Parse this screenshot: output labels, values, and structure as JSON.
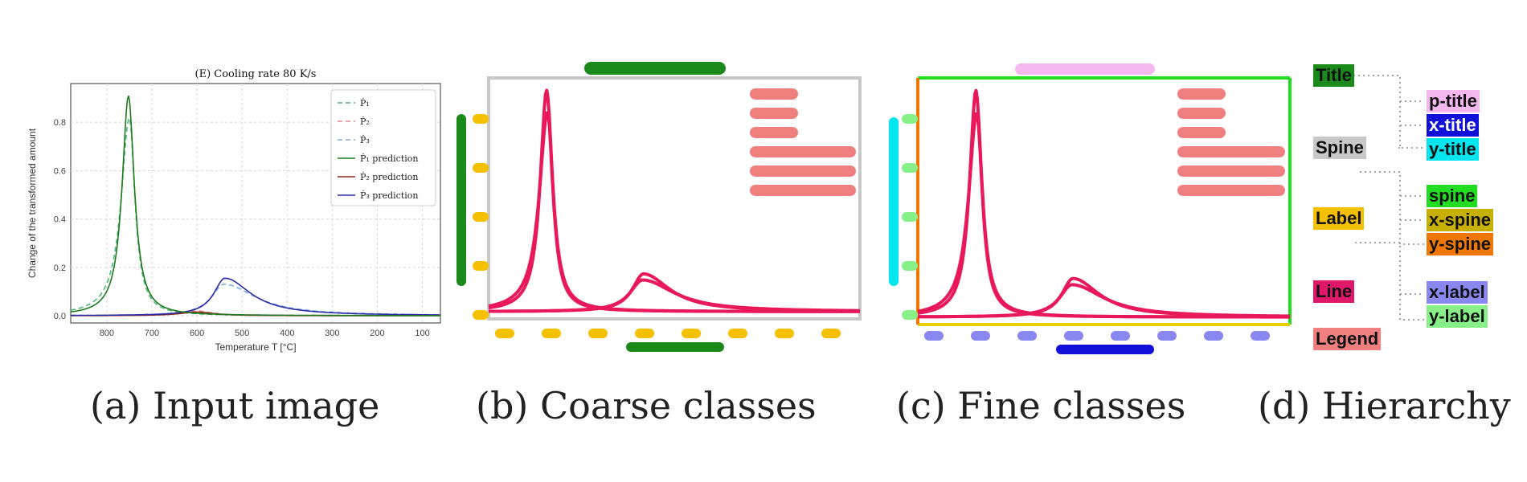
{
  "captions": {
    "a": "(a) Input image",
    "b": "(b) Coarse classes",
    "c": "(c) Fine classes",
    "d": "(d) Hierarchy"
  },
  "input_chart": {
    "title_prefix": "(E)",
    "title_text": "Cooling rate 80",
    "title_unit": "K/s",
    "xlabel": "Temperature T [°C]",
    "ylabel": "Change of the transformed amount",
    "x_ticks": [
      "800",
      "700",
      "600",
      "500",
      "400",
      "300",
      "200",
      "100"
    ],
    "y_ticks": [
      "0.0",
      "0.2",
      "0.4",
      "0.6",
      "0.8"
    ],
    "legend": [
      "Ṗ₁",
      "Ṗ₂",
      "Ṗ₃",
      "Ṗ₁ prediction",
      "Ṗ₂ prediction",
      "Ṗ₃ prediction"
    ],
    "colors": {
      "p1_dash": "#4cb87a",
      "p2_dash": "#e88a8a",
      "p3_dash": "#7aaee0",
      "p1_pred": "#1f7a1f",
      "p2_pred": "#8b2a1a",
      "p3_pred": "#2a2aa8"
    }
  },
  "chart_data": {
    "type": "line",
    "title": "(E) Cooling rate 80 K/s",
    "xlabel": "Temperature T [°C]",
    "ylabel": "Change of the transformed amount",
    "xlim": [
      880,
      60
    ],
    "ylim": [
      -0.03,
      0.96
    ],
    "grid": true,
    "legend_position": "top-right",
    "series": [
      {
        "name": "Ṗ₁",
        "peak_x": 750,
        "peak_y": 0.82
      },
      {
        "name": "Ṗ₂",
        "peak_x": 600,
        "peak_y": 0.02
      },
      {
        "name": "Ṗ₃",
        "peak_x": 540,
        "peak_y": 0.13
      },
      {
        "name": "Ṗ₁ prediction",
        "peak_x": 752,
        "peak_y": 0.91
      },
      {
        "name": "Ṗ₂ prediction",
        "peak_x": 600,
        "peak_y": 0.015
      },
      {
        "name": "Ṗ₃ prediction",
        "peak_x": 538,
        "peak_y": 0.155
      }
    ]
  },
  "classes": {
    "coarse": {
      "title": "#1a8a1a",
      "label": "#f5c000",
      "line": "#e8185a",
      "legend": "#f08080",
      "spine": "#c8c8c8"
    },
    "fine": {
      "p_title": "#f4b8ee",
      "x_title": "#1010d8",
      "y_title": "#00e5ee",
      "spine": "#22dd22",
      "x_spine": "#e8d000",
      "y_spine": "#f07800",
      "x_label": "#8888f0",
      "y_label": "#88f088"
    }
  },
  "hierarchy": {
    "coarse": [
      {
        "label": "Title",
        "color": "#1a8a1a"
      },
      {
        "label": "Spine",
        "color": "#c8c8c8"
      },
      {
        "label": "Label",
        "color": "#f5c000"
      },
      {
        "label": "Line",
        "color": "#e0186a"
      },
      {
        "label": "Legend",
        "color": "#f08080"
      }
    ],
    "fine": [
      {
        "label": "p-title",
        "color": "#f4b8ee"
      },
      {
        "label": "x-title",
        "color": "#1010d8"
      },
      {
        "label": "y-title",
        "color": "#00e5ee"
      },
      {
        "label": "spine",
        "color": "#22dd22"
      },
      {
        "label": "x-spine",
        "color": "#c8b000"
      },
      {
        "label": "y-spine",
        "color": "#f07800"
      },
      {
        "label": "x-label",
        "color": "#8888f0"
      },
      {
        "label": "y-label",
        "color": "#88f088"
      }
    ]
  }
}
